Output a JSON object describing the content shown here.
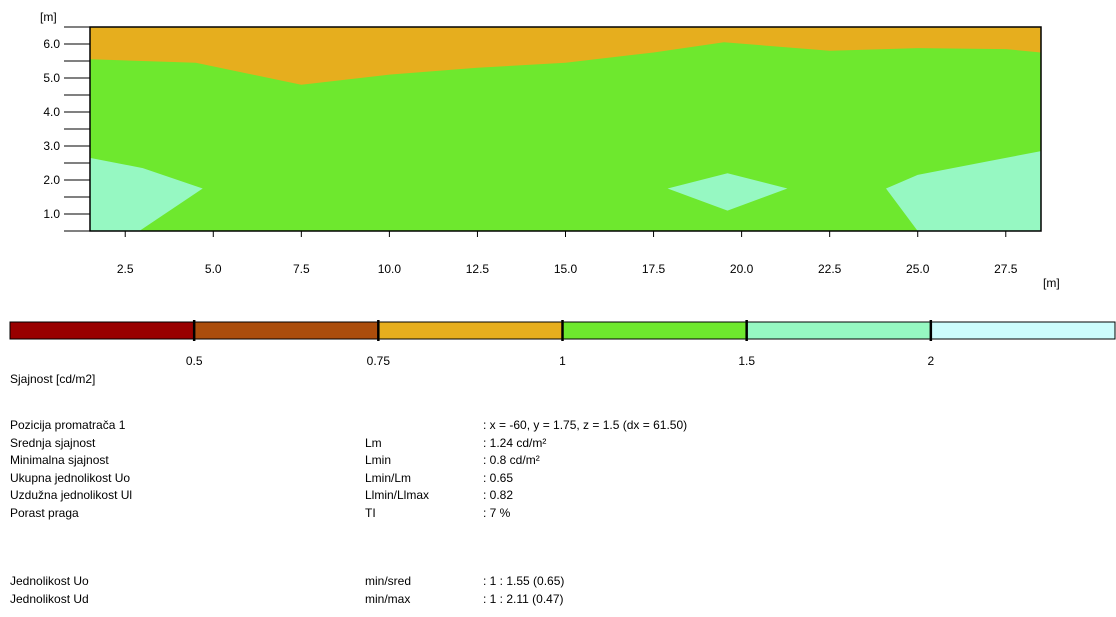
{
  "chart_data": {
    "type": "heatmap",
    "title": "",
    "xlabel": "",
    "ylabel": "",
    "x_unit": "[m]",
    "y_unit": "[m]",
    "xlim": [
      1.5,
      28.5
    ],
    "ylim": [
      0.5,
      6.5
    ],
    "x_ticks": [
      "2.5",
      "5.0",
      "7.5",
      "10.0",
      "12.5",
      "15.0",
      "17.5",
      "20.0",
      "22.5",
      "25.0",
      "27.5"
    ],
    "y_ticks": [
      "1.0",
      "2.0",
      "3.0",
      "4.0",
      "5.0",
      "6.0"
    ],
    "regions": [
      {
        "level": "1 - 1.5",
        "color": "#6ee82e",
        "points": [
          [
            1.5,
            0.5
          ],
          [
            28.5,
            0.5
          ],
          [
            28.5,
            6.5
          ],
          [
            1.5,
            6.5
          ]
        ]
      },
      {
        "level": "0.75 - 1",
        "color": "#e6ae1e",
        "points": [
          [
            1.5,
            6.5
          ],
          [
            28.5,
            6.5
          ],
          [
            28.5,
            5.75
          ],
          [
            27.5,
            5.85
          ],
          [
            25.0,
            5.88
          ],
          [
            22.5,
            5.8
          ],
          [
            19.5,
            6.05
          ],
          [
            17.5,
            5.75
          ],
          [
            15.0,
            5.45
          ],
          [
            12.5,
            5.3
          ],
          [
            10.0,
            5.1
          ],
          [
            7.5,
            4.8
          ],
          [
            4.5,
            5.45
          ],
          [
            1.5,
            5.55
          ]
        ]
      },
      {
        "level": "1.5 - 2",
        "color": "#96f8c2",
        "points": [
          [
            1.5,
            0.5
          ],
          [
            2.9,
            0.5
          ],
          [
            4.7,
            1.75
          ],
          [
            3.0,
            2.35
          ],
          [
            1.5,
            2.65
          ]
        ]
      },
      {
        "level": "1.5 - 2",
        "color": "#96f8c2",
        "points": [
          [
            17.9,
            1.75
          ],
          [
            19.6,
            2.2
          ],
          [
            21.3,
            1.75
          ],
          [
            19.6,
            1.1
          ]
        ]
      },
      {
        "level": "1.5 - 2",
        "color": "#96f8c2",
        "points": [
          [
            24.1,
            1.75
          ],
          [
            25.0,
            2.15
          ],
          [
            27.0,
            2.55
          ],
          [
            28.5,
            2.85
          ],
          [
            28.5,
            0.5
          ],
          [
            25.0,
            0.5
          ]
        ]
      }
    ]
  },
  "legend": {
    "colors": [
      "#990000",
      "#ab4d0c",
      "#e6ae1e",
      "#6ee82e",
      "#96f8c2",
      "#ccfcfc"
    ],
    "labels": [
      "0.5",
      "0.75",
      "1",
      "1.5",
      "2"
    ],
    "title": "Sjajnost [cd/m2]"
  },
  "info": [
    {
      "label": "Pozicija promatrača 1",
      "symbol": "",
      "value": ": x = -60, y = 1.75, z = 1.5 (dx = 61.50)"
    },
    {
      "label": "Srednja sjajnost",
      "symbol": "Lm",
      "value": ": 1.24 cd/m²"
    },
    {
      "label": "Minimalna sjajnost",
      "symbol": "Lmin",
      "value": ": 0.8 cd/m²"
    },
    {
      "label": "Ukupna jednolikost Uo",
      "symbol": "Lmin/Lm",
      "value": ": 0.65"
    },
    {
      "label": "Uzdužna jednolikost Ul",
      "symbol": "Llmin/Llmax",
      "value": ": 0.82"
    },
    {
      "label": "Porast praga",
      "symbol": "TI",
      "value": ": 7 %"
    }
  ],
  "uniformity": [
    {
      "label": "Jednolikost Uo",
      "symbol": "min/sred",
      "value": ": 1 : 1.55 (0.65)"
    },
    {
      "label": "Jednolikost Ud",
      "symbol": "min/max",
      "value": ": 1 : 2.11  (0.47)"
    }
  ]
}
